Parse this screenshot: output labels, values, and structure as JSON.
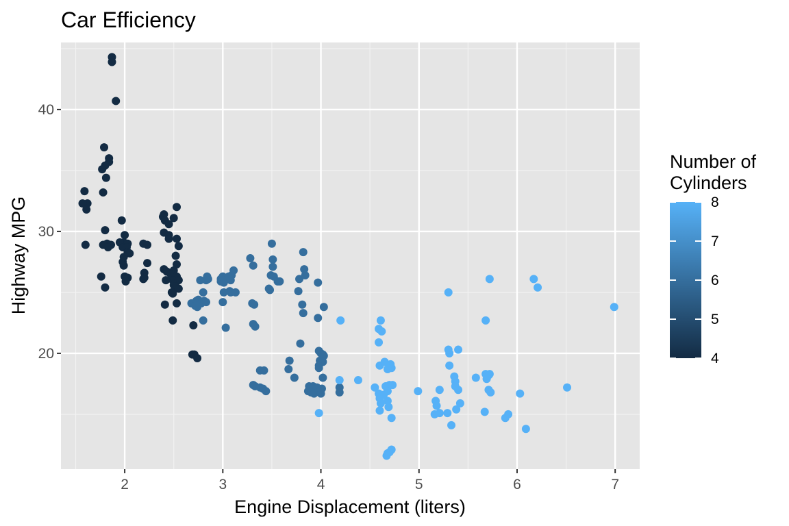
{
  "chart_data": {
    "type": "scatter",
    "title": "Car Efficiency",
    "xlabel": "Engine Displacement (liters)",
    "ylabel": "Highway MPG",
    "xlim": [
      1.35,
      7.25
    ],
    "ylim": [
      10.5,
      45.5
    ],
    "x_ticks": [
      2,
      3,
      4,
      5,
      6,
      7
    ],
    "y_ticks": [
      20,
      30,
      40
    ],
    "grid": true,
    "background": "#e5e5e5",
    "legend": {
      "title_lines": [
        "Number of",
        "Cylinders"
      ],
      "type": "colorbar",
      "position": "right",
      "range": [
        4,
        8
      ],
      "ticks": [
        4,
        5,
        6,
        7,
        8
      ],
      "low_color": "#132b43",
      "high_color": "#56b1f7"
    },
    "points": [
      {
        "x": 1.87,
        "y": 44.3,
        "c": 4
      },
      {
        "x": 1.87,
        "y": 43.9,
        "c": 4
      },
      {
        "x": 1.91,
        "y": 40.7,
        "c": 4
      },
      {
        "x": 1.79,
        "y": 36.9,
        "c": 4
      },
      {
        "x": 1.84,
        "y": 36.0,
        "c": 4
      },
      {
        "x": 1.84,
        "y": 35.7,
        "c": 4
      },
      {
        "x": 1.8,
        "y": 35.4,
        "c": 4
      },
      {
        "x": 1.77,
        "y": 35.1,
        "c": 4
      },
      {
        "x": 1.81,
        "y": 34.4,
        "c": 4
      },
      {
        "x": 1.59,
        "y": 33.3,
        "c": 4
      },
      {
        "x": 1.78,
        "y": 33.2,
        "c": 4
      },
      {
        "x": 1.62,
        "y": 32.3,
        "c": 4
      },
      {
        "x": 1.57,
        "y": 32.3,
        "c": 4
      },
      {
        "x": 1.61,
        "y": 31.8,
        "c": 4
      },
      {
        "x": 1.97,
        "y": 30.9,
        "c": 4
      },
      {
        "x": 1.8,
        "y": 30.1,
        "c": 4
      },
      {
        "x": 2.0,
        "y": 29.7,
        "c": 4
      },
      {
        "x": 1.99,
        "y": 29.1,
        "c": 4
      },
      {
        "x": 1.95,
        "y": 29.1,
        "c": 4
      },
      {
        "x": 2.03,
        "y": 29.0,
        "c": 4
      },
      {
        "x": 1.82,
        "y": 29.0,
        "c": 4
      },
      {
        "x": 1.78,
        "y": 28.9,
        "c": 4
      },
      {
        "x": 1.6,
        "y": 28.9,
        "c": 4
      },
      {
        "x": 1.86,
        "y": 28.9,
        "c": 4
      },
      {
        "x": 1.98,
        "y": 28.7,
        "c": 4
      },
      {
        "x": 2.02,
        "y": 28.7,
        "c": 4
      },
      {
        "x": 1.83,
        "y": 28.7,
        "c": 4
      },
      {
        "x": 2.03,
        "y": 28.3,
        "c": 4
      },
      {
        "x": 2.05,
        "y": 28.2,
        "c": 4
      },
      {
        "x": 1.99,
        "y": 27.9,
        "c": 4
      },
      {
        "x": 1.98,
        "y": 27.5,
        "c": 4
      },
      {
        "x": 1.99,
        "y": 27.2,
        "c": 4
      },
      {
        "x": 1.76,
        "y": 26.3,
        "c": 4
      },
      {
        "x": 2.0,
        "y": 26.3,
        "c": 4
      },
      {
        "x": 2.03,
        "y": 26.2,
        "c": 4
      },
      {
        "x": 2.01,
        "y": 25.9,
        "c": 4
      },
      {
        "x": 1.8,
        "y": 25.4,
        "c": 4
      },
      {
        "x": 2.19,
        "y": 29.0,
        "c": 4
      },
      {
        "x": 2.23,
        "y": 28.9,
        "c": 4
      },
      {
        "x": 2.23,
        "y": 27.4,
        "c": 4
      },
      {
        "x": 2.2,
        "y": 26.6,
        "c": 4
      },
      {
        "x": 2.2,
        "y": 26.2,
        "c": 4
      },
      {
        "x": 2.19,
        "y": 26.1,
        "c": 4
      },
      {
        "x": 2.4,
        "y": 31.4,
        "c": 4
      },
      {
        "x": 2.39,
        "y": 31.2,
        "c": 4
      },
      {
        "x": 2.41,
        "y": 30.9,
        "c": 4
      },
      {
        "x": 2.45,
        "y": 30.6,
        "c": 4
      },
      {
        "x": 2.4,
        "y": 29.9,
        "c": 4
      },
      {
        "x": 2.45,
        "y": 29.7,
        "c": 4
      },
      {
        "x": 2.53,
        "y": 32.0,
        "c": 4
      },
      {
        "x": 2.5,
        "y": 31.1,
        "c": 4
      },
      {
        "x": 2.45,
        "y": 29.4,
        "c": 4
      },
      {
        "x": 2.53,
        "y": 29.4,
        "c": 4
      },
      {
        "x": 2.55,
        "y": 28.8,
        "c": 4
      },
      {
        "x": 2.52,
        "y": 28.0,
        "c": 4
      },
      {
        "x": 2.53,
        "y": 27.3,
        "c": 4
      },
      {
        "x": 2.4,
        "y": 26.9,
        "c": 4
      },
      {
        "x": 2.43,
        "y": 26.7,
        "c": 4
      },
      {
        "x": 2.5,
        "y": 26.8,
        "c": 4
      },
      {
        "x": 2.47,
        "y": 26.5,
        "c": 4
      },
      {
        "x": 2.53,
        "y": 26.3,
        "c": 4
      },
      {
        "x": 2.49,
        "y": 26.0,
        "c": 4
      },
      {
        "x": 2.42,
        "y": 26.0,
        "c": 4
      },
      {
        "x": 2.55,
        "y": 26.0,
        "c": 4
      },
      {
        "x": 2.5,
        "y": 25.6,
        "c": 4
      },
      {
        "x": 2.52,
        "y": 25.5,
        "c": 4
      },
      {
        "x": 2.48,
        "y": 25.0,
        "c": 4
      },
      {
        "x": 2.55,
        "y": 25.3,
        "c": 4
      },
      {
        "x": 2.49,
        "y": 24.9,
        "c": 4
      },
      {
        "x": 2.41,
        "y": 24.0,
        "c": 4
      },
      {
        "x": 2.53,
        "y": 24.1,
        "c": 4
      },
      {
        "x": 2.49,
        "y": 22.7,
        "c": 4
      },
      {
        "x": 2.7,
        "y": 22.3,
        "c": 4
      },
      {
        "x": 2.69,
        "y": 19.9,
        "c": 4
      },
      {
        "x": 2.71,
        "y": 19.9,
        "c": 4
      },
      {
        "x": 2.74,
        "y": 19.6,
        "c": 4
      },
      {
        "x": 2.68,
        "y": 24.1,
        "c": 6
      },
      {
        "x": 2.73,
        "y": 24.3,
        "c": 6
      },
      {
        "x": 2.75,
        "y": 24.4,
        "c": 6
      },
      {
        "x": 2.78,
        "y": 24.1,
        "c": 6
      },
      {
        "x": 2.74,
        "y": 23.8,
        "c": 6
      },
      {
        "x": 2.72,
        "y": 23.9,
        "c": 6
      },
      {
        "x": 2.81,
        "y": 24.3,
        "c": 6
      },
      {
        "x": 2.83,
        "y": 24.2,
        "c": 6
      },
      {
        "x": 2.8,
        "y": 25.0,
        "c": 6
      },
      {
        "x": 2.77,
        "y": 26.0,
        "c": 6
      },
      {
        "x": 2.83,
        "y": 26.0,
        "c": 6
      },
      {
        "x": 2.84,
        "y": 26.3,
        "c": 6
      },
      {
        "x": 2.85,
        "y": 26.1,
        "c": 6
      },
      {
        "x": 2.8,
        "y": 22.7,
        "c": 6
      },
      {
        "x": 2.98,
        "y": 25.9,
        "c": 6
      },
      {
        "x": 2.98,
        "y": 26.1,
        "c": 6
      },
      {
        "x": 3.0,
        "y": 26.3,
        "c": 6
      },
      {
        "x": 3.0,
        "y": 26.0,
        "c": 6
      },
      {
        "x": 3.01,
        "y": 25.8,
        "c": 6
      },
      {
        "x": 3.06,
        "y": 26.3,
        "c": 6
      },
      {
        "x": 3.08,
        "y": 26.0,
        "c": 6
      },
      {
        "x": 3.09,
        "y": 26.4,
        "c": 6
      },
      {
        "x": 3.11,
        "y": 26.8,
        "c": 6
      },
      {
        "x": 3.0,
        "y": 24.2,
        "c": 6
      },
      {
        "x": 3.01,
        "y": 25.0,
        "c": 6
      },
      {
        "x": 3.07,
        "y": 25.1,
        "c": 6
      },
      {
        "x": 3.08,
        "y": 25.0,
        "c": 6
      },
      {
        "x": 3.13,
        "y": 25.0,
        "c": 6
      },
      {
        "x": 3.03,
        "y": 22.1,
        "c": 6
      },
      {
        "x": 3.28,
        "y": 27.8,
        "c": 6
      },
      {
        "x": 3.31,
        "y": 27.2,
        "c": 6
      },
      {
        "x": 3.3,
        "y": 24.1,
        "c": 6
      },
      {
        "x": 3.32,
        "y": 24.0,
        "c": 6
      },
      {
        "x": 3.31,
        "y": 22.4,
        "c": 6
      },
      {
        "x": 3.33,
        "y": 22.2,
        "c": 6
      },
      {
        "x": 3.38,
        "y": 18.6,
        "c": 6
      },
      {
        "x": 3.42,
        "y": 18.6,
        "c": 6
      },
      {
        "x": 3.31,
        "y": 17.4,
        "c": 6
      },
      {
        "x": 3.33,
        "y": 17.3,
        "c": 6
      },
      {
        "x": 3.38,
        "y": 17.2,
        "c": 6
      },
      {
        "x": 3.41,
        "y": 17.1,
        "c": 6
      },
      {
        "x": 3.44,
        "y": 16.9,
        "c": 6
      },
      {
        "x": 3.5,
        "y": 29.0,
        "c": 6
      },
      {
        "x": 3.51,
        "y": 27.7,
        "c": 6
      },
      {
        "x": 3.51,
        "y": 27.1,
        "c": 6
      },
      {
        "x": 3.49,
        "y": 26.4,
        "c": 6
      },
      {
        "x": 3.52,
        "y": 26.3,
        "c": 6
      },
      {
        "x": 3.56,
        "y": 25.9,
        "c": 6
      },
      {
        "x": 3.58,
        "y": 25.9,
        "c": 6
      },
      {
        "x": 3.47,
        "y": 25.3,
        "c": 6
      },
      {
        "x": 3.48,
        "y": 25.2,
        "c": 6
      },
      {
        "x": 3.68,
        "y": 19.4,
        "c": 6
      },
      {
        "x": 3.67,
        "y": 18.7,
        "c": 6
      },
      {
        "x": 3.73,
        "y": 18.0,
        "c": 6
      },
      {
        "x": 3.82,
        "y": 28.3,
        "c": 6
      },
      {
        "x": 3.83,
        "y": 26.9,
        "c": 6
      },
      {
        "x": 3.78,
        "y": 26.1,
        "c": 6
      },
      {
        "x": 3.84,
        "y": 26.4,
        "c": 6
      },
      {
        "x": 3.77,
        "y": 25.1,
        "c": 6
      },
      {
        "x": 3.81,
        "y": 24.0,
        "c": 6
      },
      {
        "x": 3.82,
        "y": 23.3,
        "c": 6
      },
      {
        "x": 3.79,
        "y": 20.8,
        "c": 6
      },
      {
        "x": 3.97,
        "y": 25.8,
        "c": 6
      },
      {
        "x": 4.03,
        "y": 23.8,
        "c": 6
      },
      {
        "x": 3.97,
        "y": 22.9,
        "c": 6
      },
      {
        "x": 3.98,
        "y": 20.2,
        "c": 6
      },
      {
        "x": 4.0,
        "y": 20.0,
        "c": 6
      },
      {
        "x": 4.02,
        "y": 19.9,
        "c": 6
      },
      {
        "x": 4.03,
        "y": 19.8,
        "c": 6
      },
      {
        "x": 3.99,
        "y": 19.4,
        "c": 6
      },
      {
        "x": 4.02,
        "y": 19.3,
        "c": 6
      },
      {
        "x": 3.98,
        "y": 19.0,
        "c": 6
      },
      {
        "x": 3.98,
        "y": 18.8,
        "c": 6
      },
      {
        "x": 4.02,
        "y": 18.0,
        "c": 6
      },
      {
        "x": 3.88,
        "y": 17.3,
        "c": 6
      },
      {
        "x": 3.92,
        "y": 17.3,
        "c": 6
      },
      {
        "x": 3.96,
        "y": 17.2,
        "c": 6
      },
      {
        "x": 4.01,
        "y": 17.1,
        "c": 6
      },
      {
        "x": 3.87,
        "y": 16.9,
        "c": 6
      },
      {
        "x": 3.9,
        "y": 16.8,
        "c": 6
      },
      {
        "x": 3.93,
        "y": 16.7,
        "c": 6
      },
      {
        "x": 3.99,
        "y": 16.9,
        "c": 6
      },
      {
        "x": 4.0,
        "y": 16.7,
        "c": 6
      },
      {
        "x": 4.19,
        "y": 17.2,
        "c": 6
      },
      {
        "x": 4.19,
        "y": 16.8,
        "c": 6
      },
      {
        "x": 3.98,
        "y": 15.1,
        "c": 8
      },
      {
        "x": 4.19,
        "y": 17.8,
        "c": 8
      },
      {
        "x": 4.2,
        "y": 22.7,
        "c": 8
      },
      {
        "x": 4.38,
        "y": 17.8,
        "c": 8
      },
      {
        "x": 4.55,
        "y": 17.2,
        "c": 8
      },
      {
        "x": 4.59,
        "y": 22.0,
        "c": 8
      },
      {
        "x": 4.61,
        "y": 22.7,
        "c": 8
      },
      {
        "x": 4.62,
        "y": 21.8,
        "c": 8
      },
      {
        "x": 4.59,
        "y": 20.9,
        "c": 8
      },
      {
        "x": 4.6,
        "y": 19.0,
        "c": 8
      },
      {
        "x": 4.65,
        "y": 19.3,
        "c": 8
      },
      {
        "x": 4.71,
        "y": 19.1,
        "c": 8
      },
      {
        "x": 4.72,
        "y": 18.8,
        "c": 8
      },
      {
        "x": 4.68,
        "y": 18.7,
        "c": 8
      },
      {
        "x": 4.59,
        "y": 16.7,
        "c": 8
      },
      {
        "x": 4.64,
        "y": 16.6,
        "c": 8
      },
      {
        "x": 4.66,
        "y": 17.3,
        "c": 8
      },
      {
        "x": 4.7,
        "y": 17.4,
        "c": 8
      },
      {
        "x": 4.73,
        "y": 17.4,
        "c": 8
      },
      {
        "x": 4.68,
        "y": 16.9,
        "c": 8
      },
      {
        "x": 4.6,
        "y": 16.3,
        "c": 8
      },
      {
        "x": 4.61,
        "y": 15.9,
        "c": 8
      },
      {
        "x": 4.68,
        "y": 16.1,
        "c": 8
      },
      {
        "x": 4.6,
        "y": 15.3,
        "c": 8
      },
      {
        "x": 4.69,
        "y": 15.6,
        "c": 8
      },
      {
        "x": 4.72,
        "y": 14.7,
        "c": 8
      },
      {
        "x": 4.72,
        "y": 12.1,
        "c": 8
      },
      {
        "x": 4.68,
        "y": 11.8,
        "c": 8
      },
      {
        "x": 4.7,
        "y": 11.9,
        "c": 8
      },
      {
        "x": 4.67,
        "y": 11.6,
        "c": 8
      },
      {
        "x": 4.99,
        "y": 16.9,
        "c": 8
      },
      {
        "x": 5.21,
        "y": 17.0,
        "c": 8
      },
      {
        "x": 5.17,
        "y": 16.1,
        "c": 8
      },
      {
        "x": 5.18,
        "y": 15.7,
        "c": 8
      },
      {
        "x": 5.21,
        "y": 15.1,
        "c": 8
      },
      {
        "x": 5.16,
        "y": 15.0,
        "c": 8
      },
      {
        "x": 5.29,
        "y": 15.1,
        "c": 8
      },
      {
        "x": 5.3,
        "y": 25.0,
        "c": 8
      },
      {
        "x": 5.3,
        "y": 20.3,
        "c": 8
      },
      {
        "x": 5.31,
        "y": 20.0,
        "c": 8
      },
      {
        "x": 5.4,
        "y": 20.3,
        "c": 8
      },
      {
        "x": 5.31,
        "y": 19.0,
        "c": 8
      },
      {
        "x": 5.36,
        "y": 18.1,
        "c": 8
      },
      {
        "x": 5.37,
        "y": 17.7,
        "c": 8
      },
      {
        "x": 5.37,
        "y": 17.3,
        "c": 8
      },
      {
        "x": 5.4,
        "y": 17.0,
        "c": 8
      },
      {
        "x": 5.42,
        "y": 15.9,
        "c": 8
      },
      {
        "x": 5.38,
        "y": 15.4,
        "c": 8
      },
      {
        "x": 5.33,
        "y": 14.1,
        "c": 8
      },
      {
        "x": 5.58,
        "y": 18.0,
        "c": 8
      },
      {
        "x": 5.68,
        "y": 22.7,
        "c": 8
      },
      {
        "x": 5.72,
        "y": 26.1,
        "c": 8
      },
      {
        "x": 5.68,
        "y": 18.3,
        "c": 8
      },
      {
        "x": 5.71,
        "y": 18.2,
        "c": 8
      },
      {
        "x": 5.72,
        "y": 18.3,
        "c": 8
      },
      {
        "x": 5.69,
        "y": 17.9,
        "c": 8
      },
      {
        "x": 5.71,
        "y": 17.0,
        "c": 8
      },
      {
        "x": 5.73,
        "y": 16.8,
        "c": 8
      },
      {
        "x": 5.67,
        "y": 15.2,
        "c": 8
      },
      {
        "x": 5.88,
        "y": 14.7,
        "c": 8
      },
      {
        "x": 5.91,
        "y": 15.0,
        "c": 8
      },
      {
        "x": 6.03,
        "y": 16.7,
        "c": 8
      },
      {
        "x": 6.09,
        "y": 13.8,
        "c": 8
      },
      {
        "x": 6.17,
        "y": 26.1,
        "c": 8
      },
      {
        "x": 6.21,
        "y": 25.4,
        "c": 8
      },
      {
        "x": 6.51,
        "y": 17.2,
        "c": 8
      },
      {
        "x": 6.99,
        "y": 23.8,
        "c": 8
      }
    ]
  }
}
